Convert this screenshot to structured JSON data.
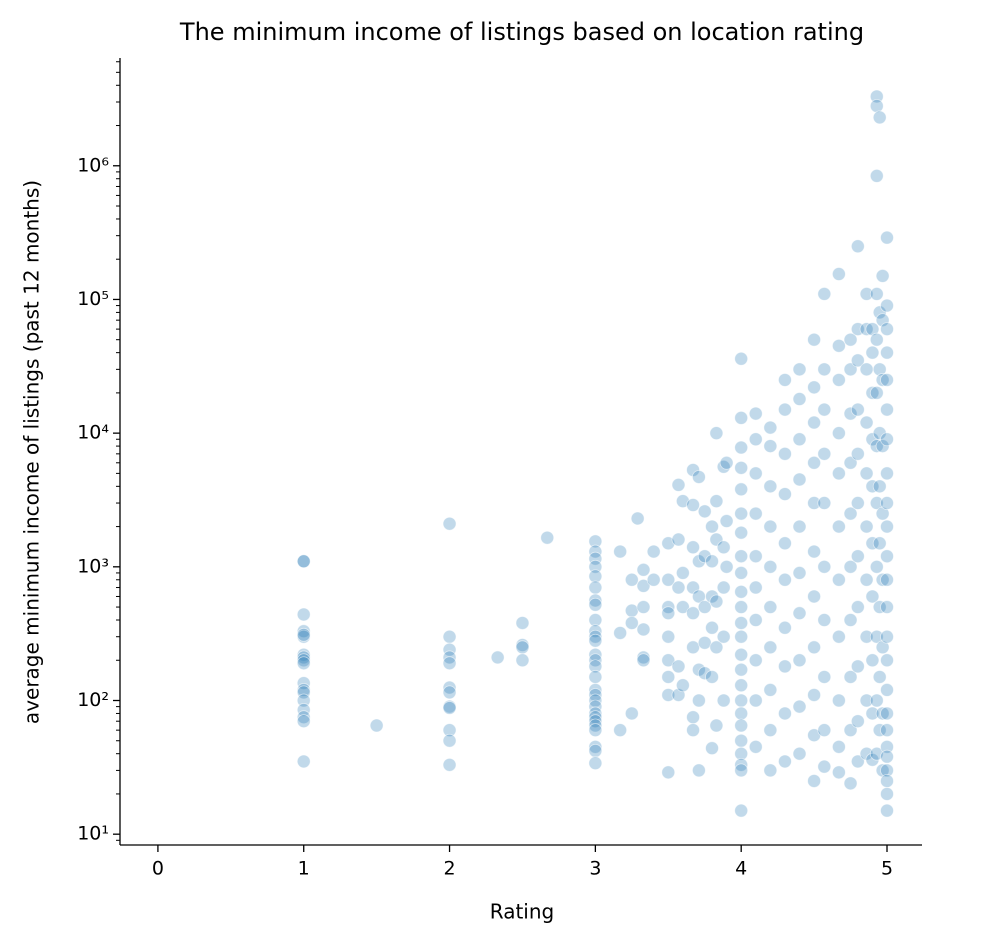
{
  "chart_data": {
    "type": "scatter",
    "title": "The minimum income of listings based on location rating",
    "x_label": "Rating",
    "y_label": "average minimum income of listings (past 12 months)",
    "color": "#1f77b4",
    "log_y": true,
    "grid": false,
    "xlim": [
      -0.26,
      5.24
    ],
    "ylim": [
      8.3,
      6400000
    ],
    "xticks": [
      0,
      1,
      2,
      3,
      4,
      5
    ],
    "yticks": [
      {
        "value": 10,
        "label": "10¹"
      },
      {
        "value": 100,
        "label": "10²"
      },
      {
        "value": 1000,
        "label": "10³"
      },
      {
        "value": 10000,
        "label": "10⁴"
      },
      {
        "value": 100000,
        "label": "10⁵"
      },
      {
        "value": 1000000,
        "label": "10⁶"
      }
    ],
    "yminorticks": [
      9,
      20,
      30,
      40,
      50,
      60,
      70,
      80,
      90,
      200,
      300,
      400,
      500,
      600,
      700,
      800,
      900,
      2000,
      3000,
      4000,
      5000,
      6000,
      7000,
      8000,
      9000,
      20000,
      30000,
      40000,
      50000,
      60000,
      70000,
      80000,
      90000,
      200000,
      300000,
      400000,
      500000,
      600000,
      700000,
      800000,
      900000,
      2000000,
      3000000,
      4000000,
      5000000,
      6000000
    ],
    "x": [
      1,
      1,
      1,
      1,
      1,
      1,
      1,
      1,
      1,
      1,
      1,
      1,
      1,
      1,
      1,
      1,
      1,
      1,
      1.5,
      2,
      2,
      2,
      2,
      2,
      2,
      2,
      2,
      2,
      2,
      2,
      2,
      2.33,
      2.5,
      2.5,
      2.5,
      2.5,
      2.67,
      3,
      3,
      3,
      3,
      3,
      3,
      3,
      3,
      3,
      3,
      3,
      3,
      3,
      3,
      3,
      3,
      3,
      3,
      3,
      3,
      3,
      3,
      3,
      3,
      3,
      3,
      3,
      3,
      3.17,
      3.17,
      3.17,
      3.25,
      3.25,
      3.25,
      3.25,
      3.29,
      3.33,
      3.33,
      3.33,
      3.33,
      3.33,
      3.33,
      3.4,
      3.4,
      3.5,
      3.5,
      3.5,
      3.5,
      3.5,
      3.5,
      3.5,
      3.5,
      3.5,
      3.57,
      3.57,
      3.57,
      3.57,
      3.57,
      3.6,
      3.6,
      3.6,
      3.6,
      3.67,
      3.67,
      3.67,
      3.67,
      3.67,
      3.67,
      3.67,
      3.67,
      3.71,
      3.71,
      3.71,
      3.71,
      3.71,
      3.71,
      3.75,
      3.75,
      3.75,
      3.75,
      3.75,
      3.8,
      3.8,
      3.8,
      3.8,
      3.8,
      3.8,
      3.83,
      3.83,
      3.83,
      3.83,
      3.83,
      3.83,
      3.88,
      3.88,
      3.88,
      3.88,
      3.88,
      3.9,
      3.9,
      3.9,
      4,
      4,
      4,
      4,
      4,
      4,
      4,
      4,
      4,
      4,
      4,
      4,
      4,
      4,
      4,
      4,
      4,
      4,
      4,
      4,
      4,
      4,
      4,
      4,
      4.1,
      4.1,
      4.1,
      4.1,
      4.1,
      4.1,
      4.1,
      4.1,
      4.1,
      4.1,
      4.2,
      4.2,
      4.2,
      4.2,
      4.2,
      4.2,
      4.2,
      4.2,
      4.2,
      4.2,
      4.3,
      4.3,
      4.3,
      4.3,
      4.3,
      4.3,
      4.3,
      4.3,
      4.3,
      4.3,
      4.4,
      4.4,
      4.4,
      4.4,
      4.4,
      4.4,
      4.4,
      4.4,
      4.4,
      4.4,
      4.5,
      4.5,
      4.5,
      4.5,
      4.5,
      4.5,
      4.5,
      4.5,
      4.5,
      4.5,
      4.5,
      4.57,
      4.57,
      4.57,
      4.57,
      4.57,
      4.57,
      4.57,
      4.57,
      4.57,
      4.57,
      4.67,
      4.67,
      4.67,
      4.67,
      4.67,
      4.67,
      4.67,
      4.67,
      4.67,
      4.67,
      4.67,
      4.75,
      4.75,
      4.75,
      4.75,
      4.75,
      4.75,
      4.75,
      4.75,
      4.75,
      4.75,
      4.8,
      4.8,
      4.8,
      4.8,
      4.8,
      4.8,
      4.8,
      4.8,
      4.8,
      4.8,
      4.8,
      4.86,
      4.86,
      4.86,
      4.86,
      4.86,
      4.86,
      4.86,
      4.86,
      4.86,
      4.86,
      4.9,
      4.9,
      4.9,
      4.9,
      4.9,
      4.9,
      4.9,
      4.9,
      4.9,
      4.9,
      4.93,
      4.93,
      4.93,
      4.93,
      4.93,
      4.93,
      4.93,
      4.93,
      4.93,
      4.93,
      4.93,
      4.93,
      4.95,
      4.95,
      4.95,
      4.95,
      4.95,
      4.95,
      4.95,
      4.95,
      4.95,
      4.97,
      4.97,
      4.97,
      4.97,
      4.97,
      4.97,
      4.97,
      4.97,
      4.97,
      5,
      5,
      5,
      5,
      5,
      5,
      5,
      5,
      5,
      5,
      5,
      5,
      5,
      5,
      5,
      5,
      5,
      5,
      5,
      5,
      5,
      5,
      5,
      5
    ],
    "values": [
      1100,
      1100,
      440,
      330,
      300,
      310,
      220,
      210,
      200,
      190,
      135,
      120,
      115,
      100,
      85,
      75,
      70,
      35,
      65,
      2100,
      300,
      240,
      210,
      190,
      125,
      115,
      90,
      88,
      60,
      50,
      33,
      210,
      380,
      260,
      250,
      200,
      1650,
      1550,
      1300,
      1150,
      1000,
      850,
      700,
      560,
      520,
      400,
      330,
      300,
      280,
      220,
      200,
      180,
      150,
      120,
      110,
      100,
      90,
      80,
      75,
      70,
      65,
      60,
      45,
      42,
      34,
      60,
      320,
      1300,
      470,
      800,
      80,
      380,
      2300,
      950,
      720,
      500,
      340,
      210,
      200,
      800,
      1300,
      1500,
      800,
      500,
      450,
      300,
      200,
      150,
      110,
      29,
      4100,
      1600,
      700,
      180,
      110,
      3100,
      900,
      500,
      130,
      5300,
      2900,
      1400,
      700,
      450,
      250,
      75,
      60,
      4700,
      1100,
      600,
      170,
      100,
      30,
      2600,
      1200,
      500,
      270,
      160,
      2000,
      1100,
      600,
      350,
      150,
      44,
      10000,
      3100,
      1600,
      550,
      250,
      65,
      5600,
      1400,
      700,
      300,
      100,
      6000,
      2200,
      1000,
      36000,
      13000,
      7800,
      5500,
      3800,
      2500,
      1800,
      1200,
      900,
      650,
      500,
      380,
      300,
      220,
      170,
      130,
      100,
      80,
      65,
      50,
      40,
      33,
      30,
      15,
      14000,
      9000,
      5000,
      2500,
      1200,
      700,
      400,
      200,
      100,
      45,
      11000,
      8000,
      4000,
      2000,
      1000,
      500,
      250,
      120,
      60,
      30,
      25000,
      15000,
      7000,
      3500,
      1500,
      800,
      350,
      180,
      80,
      35,
      30000,
      18000,
      9000,
      4500,
      2000,
      900,
      450,
      200,
      90,
      40,
      50000,
      22000,
      12000,
      6000,
      3000,
      1300,
      600,
      250,
      110,
      55,
      25,
      110000,
      30000,
      15000,
      7000,
      3000,
      1000,
      400,
      150,
      60,
      32,
      155000,
      45000,
      25000,
      10000,
      5000,
      2000,
      800,
      300,
      100,
      45,
      29,
      50000,
      30000,
      14000,
      6000,
      2500,
      1000,
      400,
      150,
      60,
      24,
      250000,
      60000,
      35000,
      15000,
      7000,
      3000,
      1200,
      500,
      180,
      70,
      35,
      110000,
      60000,
      30000,
      12000,
      5000,
      2000,
      800,
      300,
      100,
      40,
      60000,
      40000,
      20000,
      9000,
      4000,
      1500,
      600,
      200,
      80,
      36,
      3300000,
      2800000,
      840000,
      110000,
      50000,
      20000,
      8000,
      3000,
      1000,
      300,
      100,
      40,
      2300000,
      80000,
      30000,
      10000,
      4000,
      1500,
      500,
      150,
      60,
      150000,
      70000,
      25000,
      8000,
      2500,
      800,
      250,
      80,
      30,
      290000,
      90000,
      60000,
      40000,
      25000,
      15000,
      9000,
      5000,
      3000,
      2000,
      1200,
      800,
      500,
      300,
      200,
      120,
      80,
      60,
      45,
      38,
      30,
      25,
      20,
      15
    ]
  }
}
